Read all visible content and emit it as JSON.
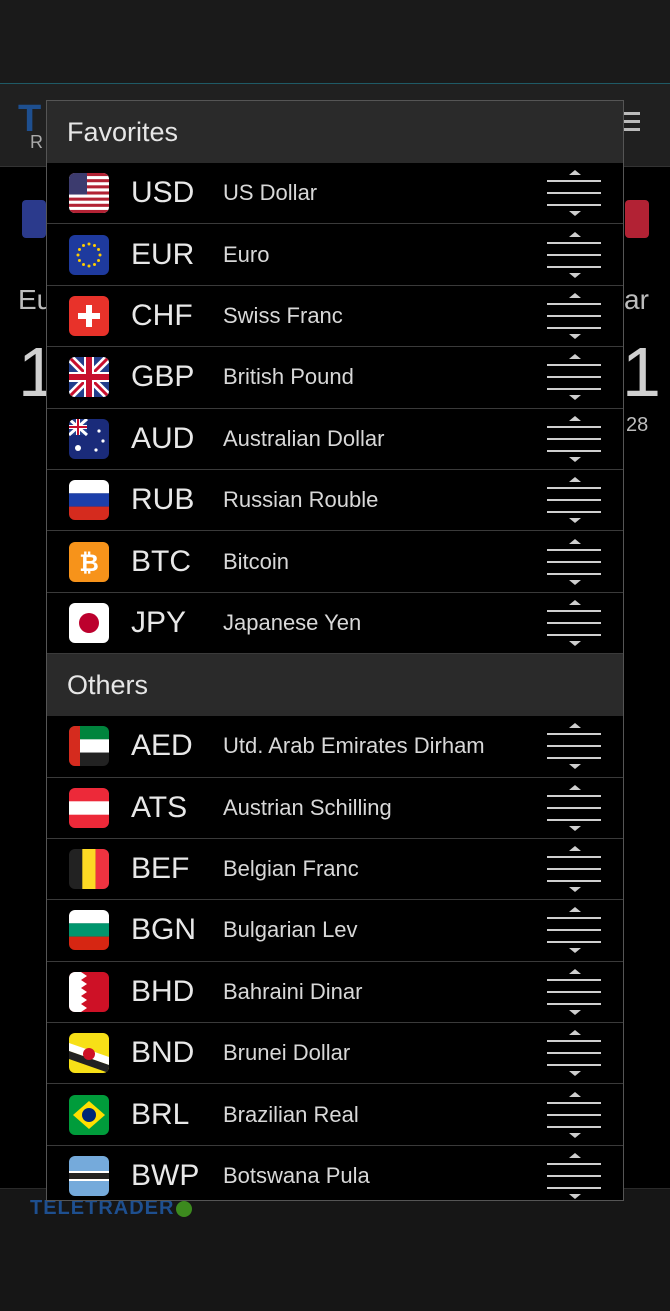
{
  "favorites": {
    "title": "Favorites",
    "items": [
      {
        "code": "USD",
        "name": "US Dollar",
        "flag": "us-flag"
      },
      {
        "code": "EUR",
        "name": "Euro",
        "flag": "eu-flag"
      },
      {
        "code": "CHF",
        "name": "Swiss Franc",
        "flag": "ch-flag"
      },
      {
        "code": "GBP",
        "name": "British Pound",
        "flag": "gb-flag"
      },
      {
        "code": "AUD",
        "name": "Australian Dollar",
        "flag": "au-flag"
      },
      {
        "code": "RUB",
        "name": "Russian Rouble",
        "flag": "ru-flag"
      },
      {
        "code": "BTC",
        "name": "Bitcoin",
        "flag": "btc-icon"
      },
      {
        "code": "JPY",
        "name": "Japanese Yen",
        "flag": "jp-flag"
      }
    ]
  },
  "others": {
    "title": "Others",
    "items": [
      {
        "code": "AED",
        "name": "Utd. Arab Emirates Dirham",
        "flag": "ae-flag"
      },
      {
        "code": "ATS",
        "name": "Austrian Schilling",
        "flag": "at-flag"
      },
      {
        "code": "BEF",
        "name": "Belgian Franc",
        "flag": "be-flag"
      },
      {
        "code": "BGN",
        "name": "Bulgarian Lev",
        "flag": "bg-flag"
      },
      {
        "code": "BHD",
        "name": "Bahraini Dinar",
        "flag": "bh-flag"
      },
      {
        "code": "BND",
        "name": "Brunei Dollar",
        "flag": "bn-flag"
      },
      {
        "code": "BRL",
        "name": "Brazilian Real",
        "flag": "br-flag"
      },
      {
        "code": "BWP",
        "name": "Botswana Pula",
        "flag": "bw-flag"
      }
    ]
  },
  "background": {
    "logo_letter": "T",
    "logo_sub": "R",
    "left_label": "Eu",
    "right_label": "ar",
    "left_big": "1",
    "right_big": "1",
    "right_small": "28",
    "footer_logo": "TELETRADER"
  },
  "colors": {
    "section_header_bg": "#2a2a2a",
    "row_divider": "#3a3a3a",
    "brand_blue": "#1e4f8f"
  }
}
